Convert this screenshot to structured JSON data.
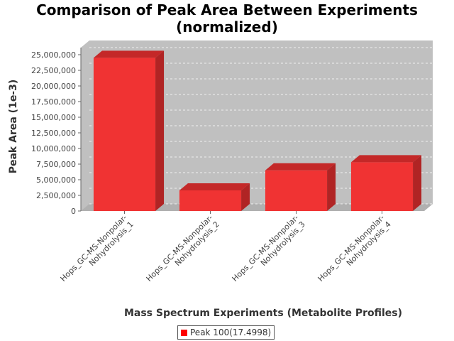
{
  "colors": {
    "bar_front": "#f03333",
    "bar_side": "#b02424",
    "bar_top": "#c42828",
    "plot_bg": "#c0c0c0",
    "plot_floor": "#b0b0b0",
    "legend_swatch": "#ff0000"
  },
  "chart_data": {
    "type": "bar",
    "title_line1": "Comparison of Peak Area Between Experiments",
    "title_line2": "(normalized)",
    "xlabel": "Mass Spectrum Experiments (Metabolite Profiles)",
    "ylabel": "Peak Area (1e-3)",
    "ylim": [
      0,
      25000000
    ],
    "yticks": [
      {
        "value": 0,
        "label": "0"
      },
      {
        "value": 2500000,
        "label": "2,500,000"
      },
      {
        "value": 5000000,
        "label": "5,000,000"
      },
      {
        "value": 7500000,
        "label": "7,500,000"
      },
      {
        "value": 10000000,
        "label": "10,000,000"
      },
      {
        "value": 12500000,
        "label": "12,500,000"
      },
      {
        "value": 15000000,
        "label": "15,000,000"
      },
      {
        "value": 17500000,
        "label": "17,500,000"
      },
      {
        "value": 20000000,
        "label": "20,000,000"
      },
      {
        "value": 22500000,
        "label": "22,500,000"
      },
      {
        "value": 25000000,
        "label": "25,000,000"
      }
    ],
    "categories": [
      [
        "Hops_GC-MS-Nonpolar-",
        "Nohydrolysis_1"
      ],
      [
        "Hops_GC-MS-Nonpolar-",
        "Nohydrolysis_2"
      ],
      [
        "Hops_GC-MS-Nonpolar-",
        "Nohydrolysis_3"
      ],
      [
        "Hops_GC-MS-Nonpolar-",
        "Nohydrolysis_4"
      ]
    ],
    "series": [
      {
        "name": "Peak 100(17.4998)",
        "values": [
          24500000,
          3300000,
          6500000,
          7800000
        ]
      }
    ],
    "grid": true,
    "legend_position": "bottom"
  }
}
